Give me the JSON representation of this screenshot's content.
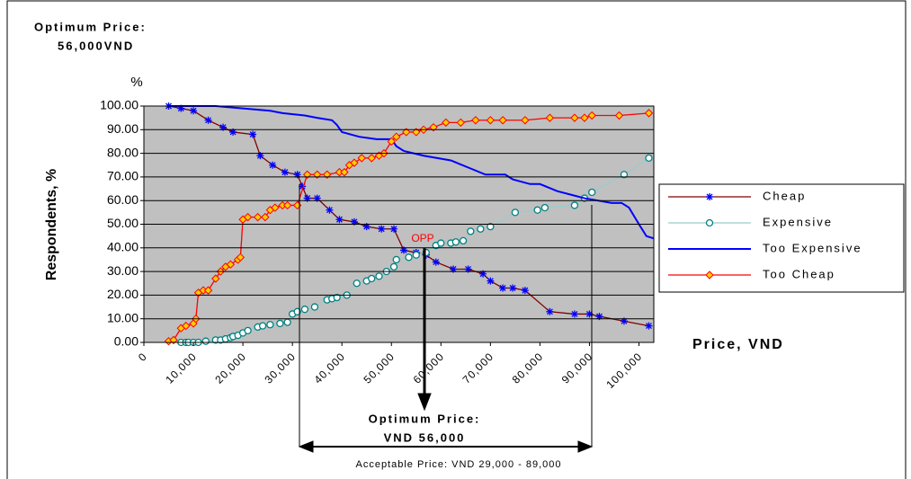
{
  "chart_data": {
    "type": "line",
    "title": "Optimum Price:",
    "subtitle": "56,000VND",
    "y_unit": "%",
    "ylabel": "Respondents, %",
    "xlabel": "Price, VND",
    "annotations": {
      "opp": "OPP",
      "optimum_line1": "Optimum Price:",
      "optimum_line2": "VND 56,000",
      "acceptable": "Acceptable Price: VND 29,000 - 89,000"
    },
    "xlim": [
      0,
      103000
    ],
    "xticks": [
      0,
      {
        "value": 10000,
        "label": "10,000"
      },
      {
        "value": 20000,
        "label": "20,000"
      },
      {
        "value": 30000,
        "label": "30,000"
      },
      {
        "value": 40000,
        "label": "40,000"
      },
      {
        "value": 50000,
        "label": "50,000"
      },
      {
        "value": 60000,
        "label": "60,000"
      },
      {
        "value": 70000,
        "label": "70,000"
      },
      {
        "value": 80000,
        "label": "80,000"
      },
      {
        "value": 90000,
        "label": "90,000"
      },
      {
        "value": 100000,
        "label": "100,000"
      }
    ],
    "ylim": [
      0,
      100
    ],
    "yticks": [
      {
        "value": 0,
        "label": "0.00"
      },
      {
        "value": 10,
        "label": "10.00"
      },
      {
        "value": 20,
        "label": "20.00"
      },
      {
        "value": 30,
        "label": "30.00"
      },
      {
        "value": 40,
        "label": "40.00"
      },
      {
        "value": 50,
        "label": "50.00"
      },
      {
        "value": 60,
        "label": "60.00"
      },
      {
        "value": 70,
        "label": "70.00"
      },
      {
        "value": 80,
        "label": "80.00"
      },
      {
        "value": 90,
        "label": "90.00"
      },
      {
        "value": 100,
        "label": "100.00"
      }
    ],
    "grid": true,
    "legend": "right",
    "series": [
      {
        "name": "Cheap",
        "color": "#800000",
        "marker": "asterisk",
        "marker_color": "#0000ff",
        "x": [
          5000,
          7500,
          10000,
          13000,
          16000,
          18000,
          22000,
          23500,
          26000,
          28500,
          31000,
          32000,
          33000,
          35000,
          37500,
          39500,
          42500,
          45000,
          48000,
          50500,
          52500,
          55000,
          57000,
          59000,
          62500,
          65500,
          68500,
          70000,
          72500,
          74500,
          77000,
          82000,
          87000,
          90000,
          92000,
          97000,
          102000
        ],
        "values": [
          100,
          99,
          98,
          94,
          91,
          89,
          88,
          79,
          75,
          72,
          71,
          66,
          61,
          61,
          56,
          52,
          51,
          49,
          48,
          48,
          39,
          38,
          37,
          34,
          31,
          31,
          29,
          26,
          23,
          23,
          22,
          13,
          12,
          12,
          11,
          9,
          7
        ]
      },
      {
        "name": "Expensive",
        "color": "#99cccc",
        "marker": "circle",
        "marker_color": "#008080",
        "x": [
          7500,
          8500,
          9000,
          10000,
          11000,
          12500,
          14500,
          15500,
          16500,
          17500,
          18000,
          19000,
          20000,
          21000,
          23000,
          24000,
          25500,
          27500,
          29000,
          30000,
          31000,
          32500,
          34500,
          37000,
          38000,
          39000,
          41000,
          43000,
          45000,
          46000,
          47500,
          49000,
          50500,
          51000,
          53500,
          55000,
          57000,
          59000,
          60000,
          62000,
          63000,
          64500,
          66000,
          68000,
          70000,
          75000,
          79500,
          81000,
          87000,
          89000,
          90500,
          97000,
          102000
        ],
        "values": [
          0,
          0,
          0,
          0,
          0,
          0.5,
          1,
          1,
          1.5,
          2,
          2.5,
          3,
          4,
          5,
          6.5,
          7,
          7.5,
          8,
          8.5,
          12,
          13,
          14,
          15,
          18,
          18.5,
          19,
          20,
          25,
          26,
          27,
          28,
          30,
          32,
          35,
          36,
          37,
          38,
          41,
          42,
          42,
          42.5,
          43,
          47,
          48,
          49,
          55,
          56,
          57,
          58,
          61,
          63.5,
          71,
          78
        ]
      },
      {
        "name": "Too Expensive",
        "color": "#0000ff",
        "marker": "none",
        "x": [
          5000,
          14500,
          20000,
          25500,
          28000,
          32500,
          35000,
          38000,
          39000,
          40000,
          43500,
          47000,
          50000,
          51000,
          52500,
          56500,
          62000,
          65500,
          69000,
          73000,
          74500,
          78000,
          80000,
          83500,
          89000,
          94500,
          96500,
          98000,
          100000,
          101500,
          103000
        ],
        "values": [
          100,
          100,
          99,
          98,
          97,
          96,
          95,
          94,
          92,
          89,
          87,
          86,
          86,
          83,
          81,
          79,
          77,
          74,
          71,
          71,
          69,
          67,
          67,
          64,
          61,
          59,
          59,
          57,
          50,
          45,
          44
        ]
      },
      {
        "name": "Too Cheap",
        "color": "#ff0000",
        "marker": "diamond",
        "marker_color": "#ffcc00",
        "x": [
          5000,
          6000,
          7500,
          8500,
          10000,
          10500,
          11000,
          12000,
          13000,
          14500,
          15500,
          16500,
          17500,
          19000,
          19500,
          20000,
          21000,
          23000,
          24500,
          25500,
          26500,
          28000,
          29000,
          31000,
          33000,
          35000,
          37000,
          39500,
          40500,
          41500,
          42500,
          44000,
          46000,
          47500,
          48500,
          50000,
          51000,
          53000,
          55000,
          56500,
          58500,
          61000,
          64000,
          67000,
          70000,
          72500,
          77000,
          82000,
          87000,
          89000,
          90500,
          96000,
          102000
        ],
        "values": [
          0.5,
          1,
          6,
          7,
          8,
          10,
          21,
          22,
          22,
          27,
          30,
          32,
          33,
          35,
          36,
          52,
          53,
          53,
          53,
          56,
          57,
          58,
          58,
          58,
          71,
          71,
          71,
          72,
          72,
          75,
          76,
          78,
          78,
          79,
          80,
          85,
          87,
          89,
          89,
          90,
          91,
          93,
          93,
          94,
          94,
          94,
          94,
          95,
          95,
          95,
          96,
          96,
          97
        ]
      }
    ]
  }
}
